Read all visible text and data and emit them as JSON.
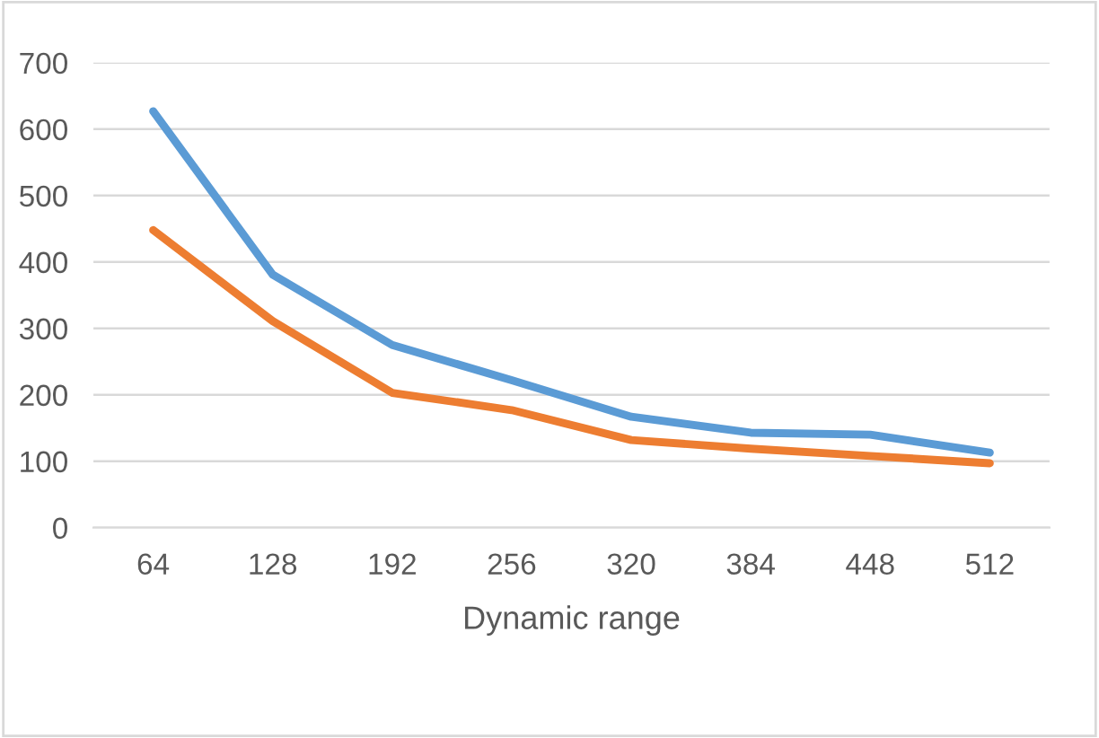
{
  "chart_data": {
    "type": "line",
    "xlabel": "Dynamic range",
    "categories": [
      "64",
      "128",
      "192",
      "256",
      "320",
      "384",
      "448",
      "512"
    ],
    "series": [
      {
        "color": "#5b9bd5",
        "values": [
          627,
          381,
          275,
          222,
          167,
          143,
          140,
          113
        ]
      },
      {
        "color": "#ed7d31",
        "values": [
          448,
          311,
          203,
          177,
          132,
          119,
          108,
          97
        ]
      }
    ],
    "ylim": [
      0,
      700
    ],
    "yticks": [
      0,
      100,
      200,
      300,
      400,
      500,
      600,
      700
    ],
    "grid": "y",
    "marker": "none",
    "line_style": "solid"
  }
}
